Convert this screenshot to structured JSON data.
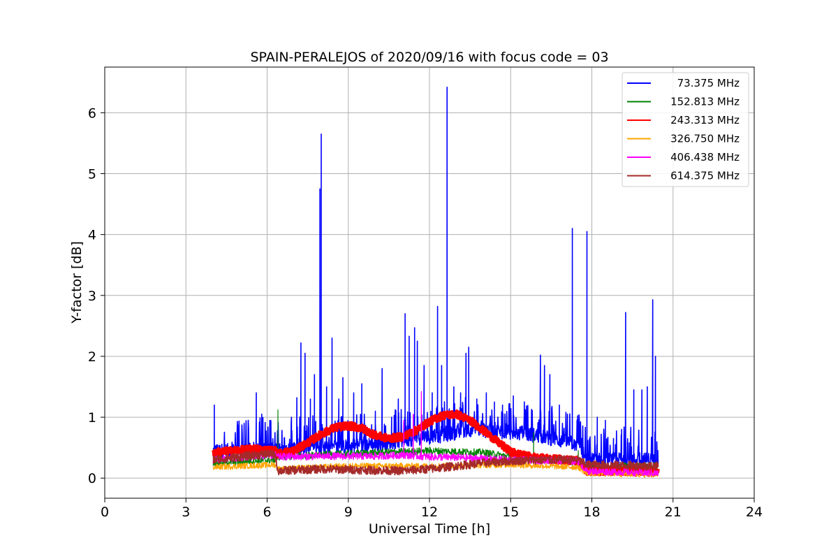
{
  "chart_data": {
    "type": "line",
    "title": "SPAIN-PERALEJOS of 2020/09/16 with focus code = 03",
    "xlabel": "Universal Time [h]",
    "ylabel": "Y-factor [dB]",
    "xlim": [
      0,
      24
    ],
    "ylim": [
      -0.33,
      6.75
    ],
    "xticks": [
      "0",
      "3",
      "6",
      "9",
      "12",
      "15",
      "18",
      "21",
      "24"
    ],
    "yticks": [
      "0",
      "1",
      "2",
      "3",
      "4",
      "5",
      "6"
    ],
    "grid": true,
    "legend_position": "top-right",
    "x_range_data": [
      4.0,
      20.45
    ],
    "series": [
      {
        "name": "73.375 MHz",
        "color": "#0000ff",
        "baseline": [
          [
            4.0,
            0.45
          ],
          [
            6.4,
            0.45
          ],
          [
            8.0,
            0.5
          ],
          [
            10.0,
            0.55
          ],
          [
            11.5,
            0.65
          ],
          [
            12.5,
            0.7
          ],
          [
            13.5,
            0.8
          ],
          [
            15.0,
            0.75
          ],
          [
            16.0,
            0.7
          ],
          [
            17.5,
            0.55
          ],
          [
            17.8,
            0.3
          ],
          [
            20.45,
            0.3
          ]
        ],
        "spikes": [
          [
            4.05,
            1.2
          ],
          [
            4.9,
            0.93
          ],
          [
            5.15,
            0.9
          ],
          [
            5.3,
            0.93
          ],
          [
            5.6,
            1.4
          ],
          [
            5.8,
            1.05
          ],
          [
            6.1,
            0.95
          ],
          [
            6.9,
            1.0
          ],
          [
            7.1,
            1.32
          ],
          [
            7.25,
            2.22
          ],
          [
            7.4,
            2.05
          ],
          [
            7.6,
            1.3
          ],
          [
            7.75,
            1.7
          ],
          [
            7.95,
            4.75
          ],
          [
            8.0,
            5.65
          ],
          [
            8.2,
            1.5
          ],
          [
            8.4,
            2.3
          ],
          [
            8.65,
            1.3
          ],
          [
            8.8,
            1.65
          ],
          [
            9.2,
            1.4
          ],
          [
            9.5,
            1.55
          ],
          [
            10.0,
            1.1
          ],
          [
            10.25,
            1.8
          ],
          [
            10.6,
            1.0
          ],
          [
            10.85,
            1.3
          ],
          [
            11.1,
            2.7
          ],
          [
            11.25,
            2.33
          ],
          [
            11.45,
            2.47
          ],
          [
            11.55,
            2.25
          ],
          [
            11.8,
            1.85
          ],
          [
            12.1,
            1.4
          ],
          [
            12.3,
            2.82
          ],
          [
            12.45,
            1.85
          ],
          [
            12.65,
            6.42
          ],
          [
            12.9,
            1.5
          ],
          [
            13.15,
            1.4
          ],
          [
            13.35,
            2.05
          ],
          [
            13.45,
            2.15
          ],
          [
            13.75,
            1.3
          ],
          [
            14.1,
            1.4
          ],
          [
            14.4,
            1.25
          ],
          [
            14.7,
            1.2
          ],
          [
            15.1,
            1.35
          ],
          [
            15.5,
            1.0
          ],
          [
            16.1,
            2.02
          ],
          [
            16.25,
            1.85
          ],
          [
            16.45,
            1.7
          ],
          [
            16.8,
            1.2
          ],
          [
            17.1,
            1.05
          ],
          [
            17.28,
            4.1
          ],
          [
            17.82,
            4.05
          ],
          [
            18.2,
            1.0
          ],
          [
            18.5,
            0.95
          ],
          [
            18.8,
            0.65
          ],
          [
            19.1,
            0.8
          ],
          [
            19.25,
            2.72
          ],
          [
            19.55,
            1.45
          ],
          [
            19.85,
            1.45
          ],
          [
            20.05,
            1.5
          ],
          [
            20.25,
            2.93
          ],
          [
            20.35,
            2.0
          ]
        ]
      },
      {
        "name": "152.813 MHz",
        "color": "#008000",
        "baseline": [
          [
            4.0,
            0.25
          ],
          [
            6.3,
            0.3
          ],
          [
            6.4,
            0.35
          ],
          [
            9.0,
            0.4
          ],
          [
            12.0,
            0.45
          ],
          [
            14.0,
            0.42
          ],
          [
            15.0,
            0.35
          ],
          [
            17.5,
            0.25
          ],
          [
            17.8,
            0.2
          ],
          [
            20.45,
            0.2
          ]
        ],
        "spikes": [
          [
            6.4,
            1.12
          ],
          [
            15.85,
            0.75
          ],
          [
            17.5,
            0.45
          ]
        ]
      },
      {
        "name": "243.313 MHz",
        "color": "#ff0000",
        "baseline": [
          [
            4.0,
            0.42
          ],
          [
            5.5,
            0.48
          ],
          [
            6.3,
            0.45
          ],
          [
            6.4,
            0.4
          ],
          [
            7.0,
            0.45
          ],
          [
            7.5,
            0.58
          ],
          [
            8.0,
            0.72
          ],
          [
            8.5,
            0.83
          ],
          [
            9.0,
            0.86
          ],
          [
            9.5,
            0.82
          ],
          [
            10.0,
            0.7
          ],
          [
            10.5,
            0.65
          ],
          [
            11.0,
            0.68
          ],
          [
            11.5,
            0.78
          ],
          [
            12.0,
            0.93
          ],
          [
            12.5,
            1.03
          ],
          [
            13.0,
            1.05
          ],
          [
            13.5,
            0.95
          ],
          [
            14.0,
            0.78
          ],
          [
            14.5,
            0.6
          ],
          [
            15.0,
            0.43
          ],
          [
            15.5,
            0.37
          ],
          [
            16.0,
            0.33
          ],
          [
            17.0,
            0.3
          ],
          [
            17.5,
            0.28
          ],
          [
            17.8,
            0.12
          ],
          [
            20.45,
            0.1
          ]
        ],
        "spikes": []
      },
      {
        "name": "326.750 MHz",
        "color": "#ffa500",
        "baseline": [
          [
            4.0,
            0.18
          ],
          [
            6.3,
            0.22
          ],
          [
            6.4,
            0.15
          ],
          [
            9.0,
            0.2
          ],
          [
            12.0,
            0.2
          ],
          [
            15.0,
            0.22
          ],
          [
            17.5,
            0.18
          ],
          [
            17.8,
            0.08
          ],
          [
            20.45,
            0.06
          ]
        ],
        "spikes": []
      },
      {
        "name": "406.438 MHz",
        "color": "#ff00ff",
        "baseline": [
          [
            4.0,
            0.3
          ],
          [
            6.3,
            0.38
          ],
          [
            6.4,
            0.35
          ],
          [
            8.0,
            0.36
          ],
          [
            10.0,
            0.36
          ],
          [
            11.0,
            0.38
          ],
          [
            12.0,
            0.35
          ],
          [
            13.0,
            0.34
          ],
          [
            14.0,
            0.32
          ],
          [
            15.0,
            0.3
          ],
          [
            17.5,
            0.28
          ],
          [
            17.8,
            0.12
          ],
          [
            20.45,
            0.08
          ]
        ],
        "spikes": [
          [
            11.05,
            0.95
          ],
          [
            11.4,
            1.05
          ],
          [
            11.7,
            1.42
          ]
        ]
      },
      {
        "name": "614.375 MHz",
        "color": "#a52a2a",
        "baseline": [
          [
            4.0,
            0.3
          ],
          [
            5.0,
            0.35
          ],
          [
            6.0,
            0.4
          ],
          [
            6.3,
            0.38
          ],
          [
            6.4,
            0.12
          ],
          [
            8.0,
            0.15
          ],
          [
            10.0,
            0.13
          ],
          [
            11.0,
            0.12
          ],
          [
            12.0,
            0.15
          ],
          [
            13.0,
            0.2
          ],
          [
            14.0,
            0.25
          ],
          [
            15.0,
            0.28
          ],
          [
            16.0,
            0.3
          ],
          [
            17.5,
            0.3
          ],
          [
            17.8,
            0.22
          ],
          [
            20.45,
            0.2
          ]
        ],
        "spikes": []
      }
    ]
  }
}
